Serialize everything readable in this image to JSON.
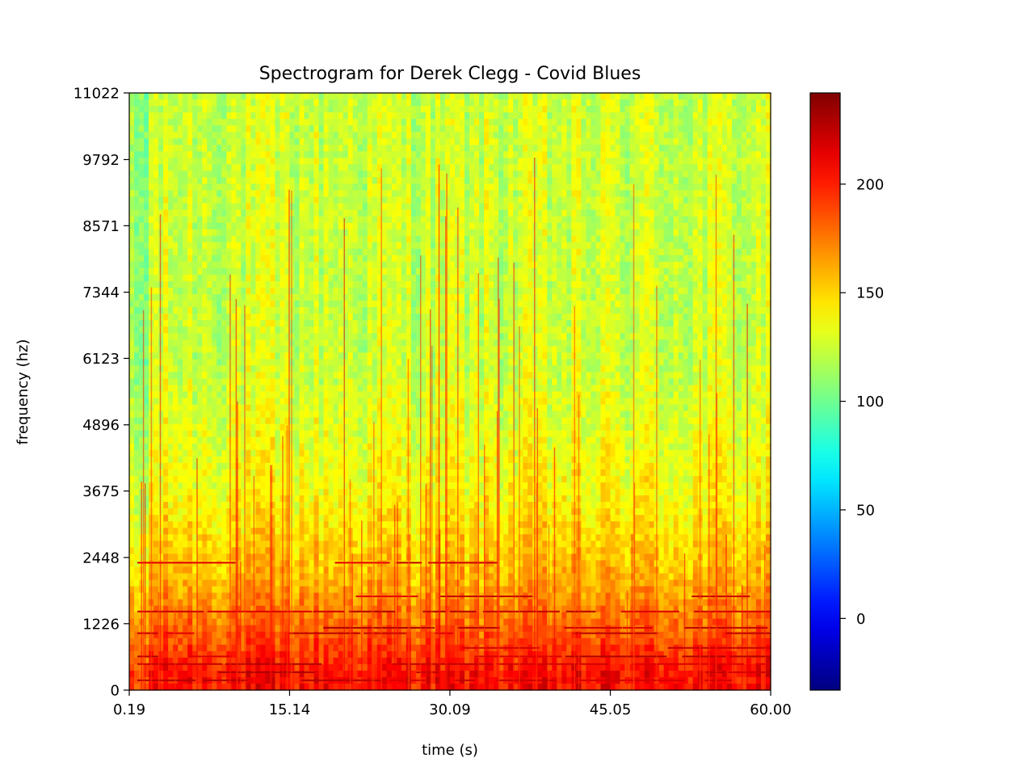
{
  "chart_data": {
    "type": "heatmap",
    "title": "Spectrogram for Derek Clegg - Covid Blues",
    "xlabel": "time (s)",
    "ylabel": "frequency (hz)",
    "xlim": [
      0.19,
      60.0
    ],
    "ylim": [
      0,
      11022
    ],
    "x_ticks": [
      "0.19",
      "15.14",
      "30.09",
      "45.05",
      "60.00"
    ],
    "x_tick_values": [
      0.19,
      15.14,
      30.09,
      45.05,
      60.0
    ],
    "y_ticks": [
      "0",
      "1226",
      "2448",
      "3675",
      "4896",
      "6123",
      "7344",
      "8571",
      "9792",
      "11022"
    ],
    "y_tick_values": [
      0,
      1226,
      2448,
      3675,
      4896,
      6123,
      7344,
      8571,
      9792,
      11022
    ],
    "colormap": "jet",
    "colorbar": {
      "range": [
        -33,
        242
      ],
      "ticks": [
        "0",
        "50",
        "100",
        "150",
        "200"
      ],
      "tick_values": [
        0,
        50,
        100,
        150,
        200
      ]
    },
    "approx_intensity_by_frequency": [
      {
        "freq_hz": 300,
        "level": 205
      },
      {
        "freq_hz": 1000,
        "level": 185
      },
      {
        "freq_hz": 2000,
        "level": 160
      },
      {
        "freq_hz": 3500,
        "level": 140
      },
      {
        "freq_hz": 6000,
        "level": 125
      },
      {
        "freq_hz": 11022,
        "level": 125
      }
    ],
    "harmonic_bands_hz": [
      180,
      330,
      480,
      620,
      780,
      1050,
      1150,
      1450,
      1730,
      2350
    ]
  }
}
